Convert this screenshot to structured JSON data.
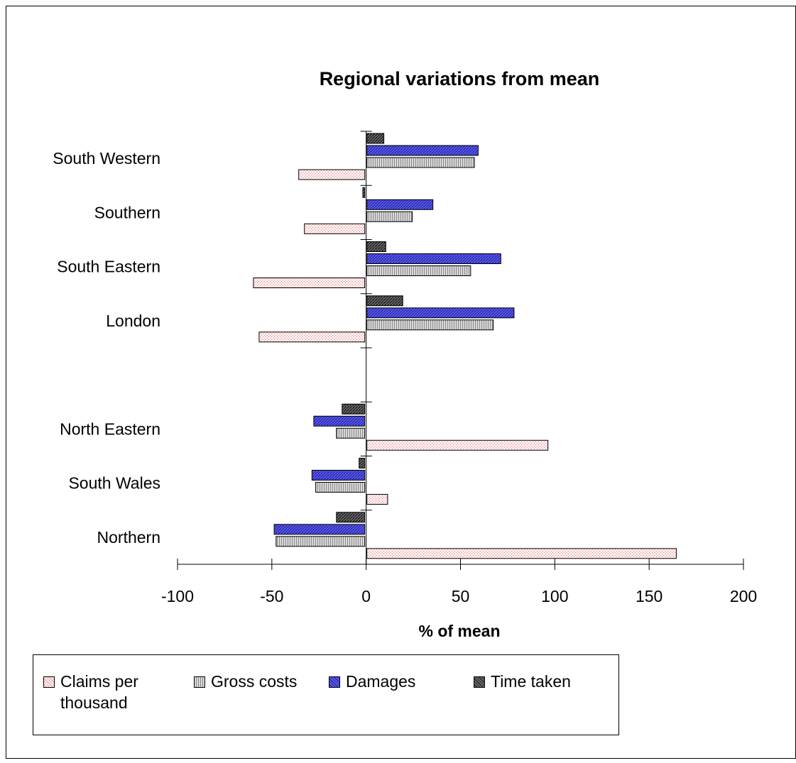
{
  "chart_data": {
    "type": "bar",
    "orientation": "horizontal",
    "title": "Regional variations from mean",
    "xlabel": "% of mean",
    "ylabel": "",
    "xlim": [
      -100,
      200
    ],
    "x_ticks": [
      -100,
      -50,
      0,
      50,
      100,
      150,
      200
    ],
    "x_tick_labels": [
      "-100",
      "-50",
      "0",
      "50",
      "100",
      "150",
      "200"
    ],
    "categories": [
      "South Western",
      "Southern",
      "South Eastern",
      "London",
      "",
      "North Eastern",
      "South Wales",
      "Northern"
    ],
    "series": [
      {
        "name": "Claims per thousand",
        "values": [
          -35,
          -32,
          -59,
          -56,
          null,
          96,
          11,
          164
        ]
      },
      {
        "name": "Gross costs",
        "values": [
          57,
          24,
          55,
          67,
          null,
          -15,
          -26,
          -47
        ]
      },
      {
        "name": "Damages",
        "values": [
          59,
          35,
          71,
          78,
          null,
          -27,
          -28,
          -48
        ]
      },
      {
        "name": "Time taken",
        "values": [
          9,
          -1,
          10,
          19,
          null,
          -12,
          -3,
          -15
        ]
      }
    ],
    "grid": false,
    "legend": "bottom"
  },
  "colors": {
    "claims": "#fbe0e0",
    "gross": "#c8c8c8",
    "damages": "#4a4ae6",
    "time": "#505050"
  }
}
